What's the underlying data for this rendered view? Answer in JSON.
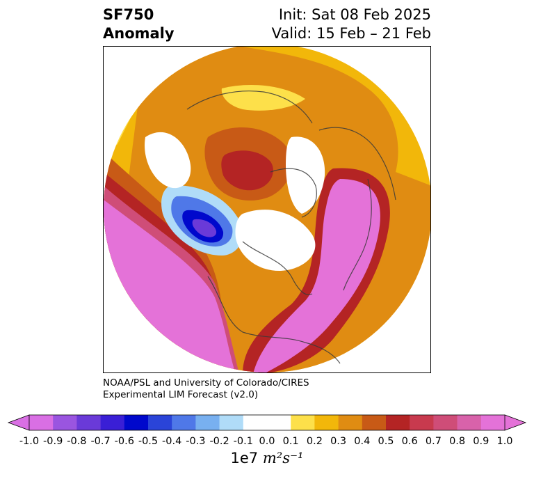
{
  "header": {
    "title_line1": "SF750",
    "title_line2": "Anomaly",
    "init": "Init: Sat 08 Feb 2025",
    "valid": "Valid: 15 Feb – 21 Feb"
  },
  "credit": {
    "line1": "NOAA/PSL and University of Colorado/CIRES",
    "line2": "Experimental LIM Forecast (v2.0)"
  },
  "colorbar": {
    "colors": [
      "#d96fe4",
      "#9a55e0",
      "#6a3ad8",
      "#3a1fd6",
      "#0008cc",
      "#2a44d8",
      "#4f78e8",
      "#78b0f0",
      "#b0dcf8",
      "#ffffff",
      "#ffffff",
      "#fde04a",
      "#f2b70a",
      "#e08c12",
      "#c85a16",
      "#b42424",
      "#c83a4e",
      "#cf4d78",
      "#d862aa",
      "#e472d8"
    ],
    "tick_labels": [
      "-1.0",
      "-0.9",
      "-0.8",
      "-0.7",
      "-0.6",
      "-0.5",
      "-0.4",
      "-0.3",
      "-0.2",
      "-0.1",
      "0.0",
      "0.1",
      "0.2",
      "0.3",
      "0.4",
      "0.5",
      "0.6",
      "0.7",
      "0.8",
      "0.9",
      "1.0"
    ],
    "units_prefix": "1e7",
    "units_math": "m²s⁻¹"
  },
  "map": {
    "projection": "north-polar-stereographic",
    "field": "750 hPa streamfunction anomaly"
  }
}
